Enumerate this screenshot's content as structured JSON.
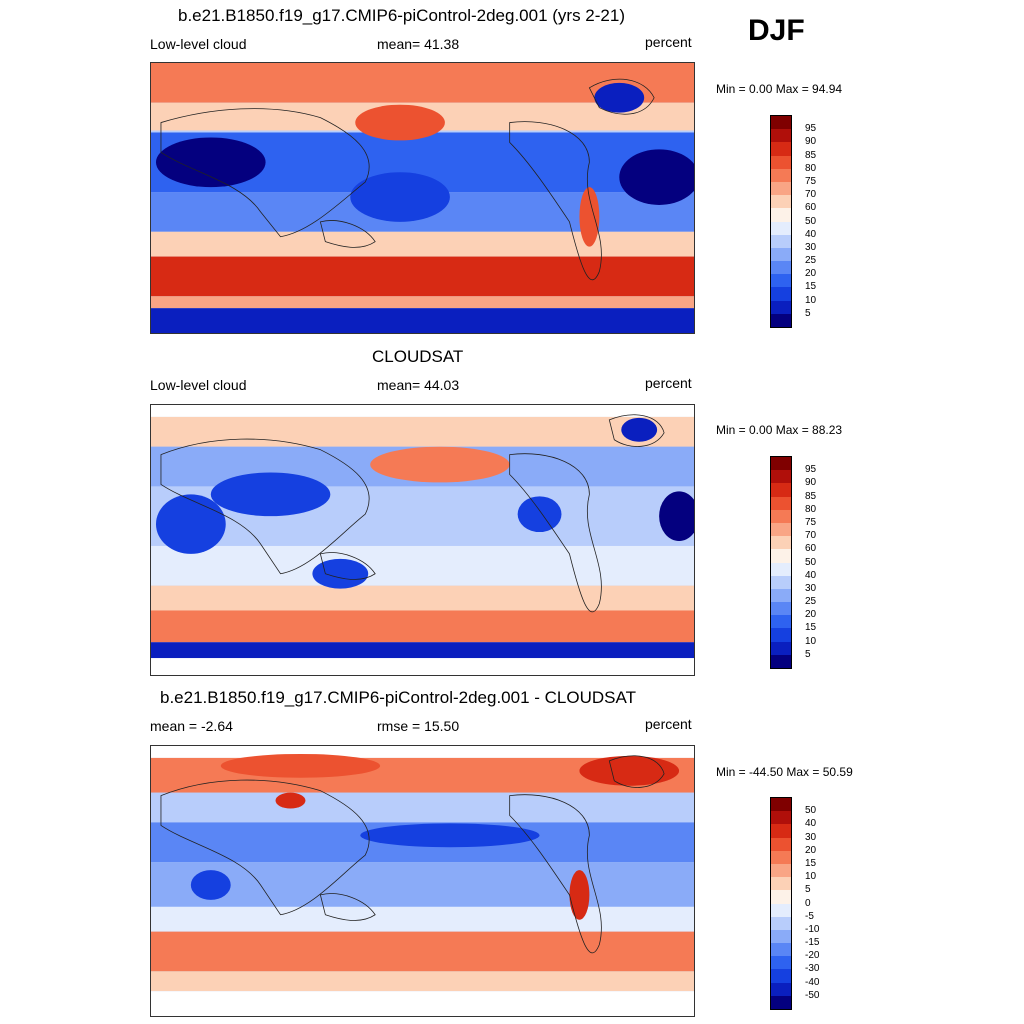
{
  "season": "DJF",
  "panels": [
    {
      "title": "b.e21.B1850.f19_g17.CMIP6-piControl-2deg.001 (yrs 2-21)",
      "left_label": "Low-level cloud",
      "center_label": "mean=  41.38",
      "right_label": "percent",
      "minmax": "Min =   0.00 Max =  94.94",
      "colorbar_labels": [
        "95",
        "90",
        "85",
        "80",
        "75",
        "70",
        "60",
        "50",
        "40",
        "30",
        "25",
        "20",
        "15",
        "10",
        "5"
      ]
    },
    {
      "title": "CLOUDSAT",
      "left_label": "Low-level cloud",
      "center_label": "mean=  44.03",
      "right_label": "percent",
      "minmax": "Min =   0.00 Max =  88.23",
      "colorbar_labels": [
        "95",
        "90",
        "85",
        "80",
        "75",
        "70",
        "60",
        "50",
        "40",
        "30",
        "25",
        "20",
        "15",
        "10",
        "5"
      ]
    },
    {
      "title": "b.e21.B1850.f19_g17.CMIP6-piControl-2deg.001 - CLOUDSAT",
      "left_label": "mean =  -2.64",
      "center_label": "rmse =  15.50",
      "right_label": "percent",
      "minmax": "Min = -44.50 Max =  50.59",
      "colorbar_labels": [
        "50",
        "40",
        "30",
        "20",
        "15",
        "10",
        "5",
        "0",
        "-5",
        "-10",
        "-15",
        "-20",
        "-30",
        "-40",
        "-50"
      ]
    }
  ],
  "colors": {
    "scale": [
      "#04007f",
      "#0a1fbf",
      "#1540e0",
      "#2e62f0",
      "#5a86f5",
      "#8aabf8",
      "#b8cdfb",
      "#e4edfd",
      "#fdf2e8",
      "#fcd1b6",
      "#f9a585",
      "#f57a55",
      "#ec5230",
      "#d72a14",
      "#b00f0a",
      "#7f0000"
    ]
  }
}
